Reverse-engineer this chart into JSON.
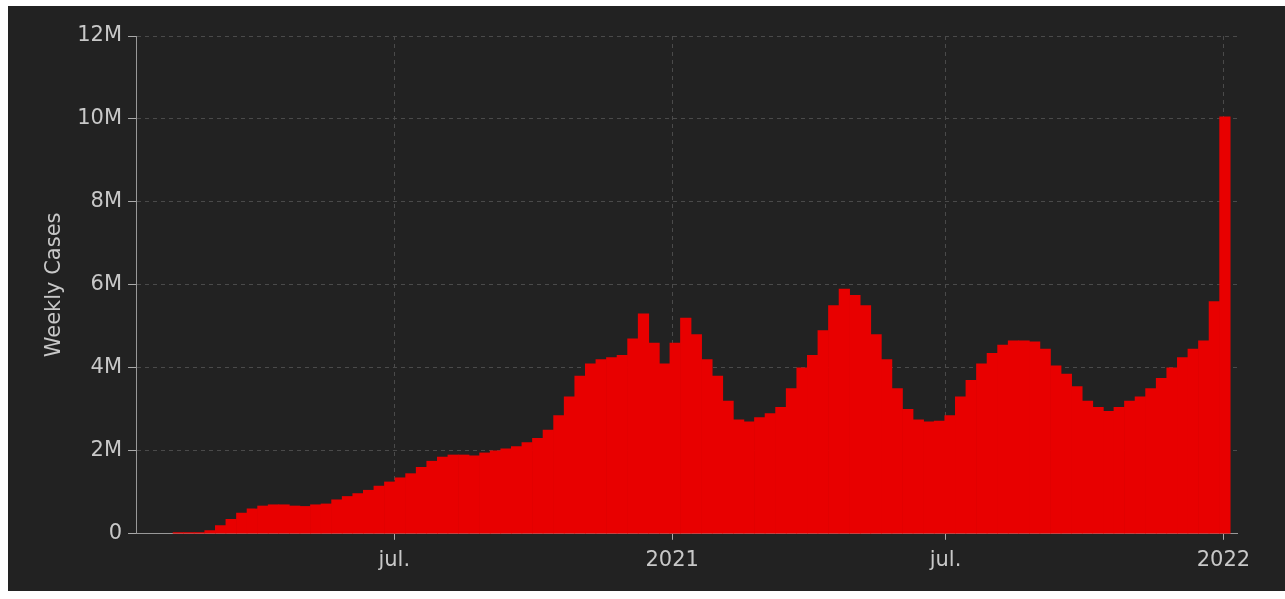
{
  "chart_data": {
    "type": "bar",
    "ylabel": "Weekly Cases",
    "color": "#e80000",
    "grid": true,
    "x": [
      "2020-02-09",
      "2020-02-16",
      "2020-02-23",
      "2020-03-01",
      "2020-03-08",
      "2020-03-15",
      "2020-03-22",
      "2020-03-29",
      "2020-04-05",
      "2020-04-12",
      "2020-04-19",
      "2020-04-26",
      "2020-05-03",
      "2020-05-10",
      "2020-05-17",
      "2020-05-24",
      "2020-05-31",
      "2020-06-07",
      "2020-06-14",
      "2020-06-21",
      "2020-06-28",
      "2020-07-05",
      "2020-07-12",
      "2020-07-19",
      "2020-07-26",
      "2020-08-02",
      "2020-08-09",
      "2020-08-16",
      "2020-08-23",
      "2020-08-30",
      "2020-09-06",
      "2020-09-13",
      "2020-09-20",
      "2020-09-27",
      "2020-10-04",
      "2020-10-11",
      "2020-10-18",
      "2020-10-25",
      "2020-11-01",
      "2020-11-08",
      "2020-11-15",
      "2020-11-22",
      "2020-11-29",
      "2020-12-06",
      "2020-12-13",
      "2020-12-20",
      "2020-12-27",
      "2021-01-03",
      "2021-01-10",
      "2021-01-17",
      "2021-01-24",
      "2021-01-31",
      "2021-02-07",
      "2021-02-14",
      "2021-02-21",
      "2021-02-28",
      "2021-03-07",
      "2021-03-14",
      "2021-03-21",
      "2021-03-28",
      "2021-04-04",
      "2021-04-11",
      "2021-04-18",
      "2021-04-25",
      "2021-05-02",
      "2021-05-09",
      "2021-05-16",
      "2021-05-23",
      "2021-05-30",
      "2021-06-06",
      "2021-06-13",
      "2021-06-20",
      "2021-06-27",
      "2021-07-04",
      "2021-07-11",
      "2021-07-18",
      "2021-07-25",
      "2021-08-01",
      "2021-08-08",
      "2021-08-15",
      "2021-08-22",
      "2021-08-29",
      "2021-09-05",
      "2021-09-12",
      "2021-09-19",
      "2021-09-26",
      "2021-10-03",
      "2021-10-10",
      "2021-10-17",
      "2021-10-24",
      "2021-10-31",
      "2021-11-07",
      "2021-11-14",
      "2021-11-21",
      "2021-11-28",
      "2021-12-05",
      "2021-12-12",
      "2021-12-19",
      "2021-12-26",
      "2022-01-02"
    ],
    "values": [
      30000,
      30000,
      30000,
      80000,
      200000,
      350000,
      500000,
      600000,
      670000,
      700000,
      700000,
      670000,
      660000,
      700000,
      720000,
      820000,
      900000,
      970000,
      1050000,
      1150000,
      1250000,
      1350000,
      1450000,
      1600000,
      1750000,
      1850000,
      1900000,
      1900000,
      1880000,
      1950000,
      2000000,
      2050000,
      2100000,
      2200000,
      2300000,
      2500000,
      2850000,
      3300000,
      3800000,
      4100000,
      4200000,
      4250000,
      4300000,
      4700000,
      5300000,
      4600000,
      4100000,
      4600000,
      5200000,
      4800000,
      4200000,
      3800000,
      3200000,
      2750000,
      2700000,
      2800000,
      2900000,
      3050000,
      3500000,
      4000000,
      4300000,
      4900000,
      5500000,
      5900000,
      5750000,
      5500000,
      4800000,
      4200000,
      3500000,
      3000000,
      2750000,
      2700000,
      2720000,
      2850000,
      3300000,
      3700000,
      4100000,
      4350000,
      4550000,
      4650000,
      4650000,
      4630000,
      4450000,
      4050000,
      3850000,
      3550000,
      3200000,
      3050000,
      2950000,
      3050000,
      3200000,
      3300000,
      3500000,
      3750000,
      4000000,
      4250000,
      4450000,
      4650000,
      5600000,
      10050000
    ],
    "xlim": [
      "2020-01-12",
      "2022-01-10"
    ],
    "xticks": [
      {
        "value": "2020-07-01",
        "label": "jul."
      },
      {
        "value": "2021-01-01",
        "label": "2021"
      },
      {
        "value": "2021-07-01",
        "label": "jul."
      },
      {
        "value": "2022-01-01",
        "label": "2022"
      }
    ],
    "ylim": [
      0,
      12000000
    ],
    "yticks": [
      0,
      {
        "value": 2000000,
        "label": "2M"
      },
      {
        "value": 4000000,
        "label": "4M"
      },
      {
        "value": 6000000,
        "label": "6M"
      },
      {
        "value": 8000000,
        "label": "8M"
      },
      {
        "value": 10000000,
        "label": "10M"
      },
      {
        "value": 12000000,
        "label": "12M"
      }
    ]
  }
}
